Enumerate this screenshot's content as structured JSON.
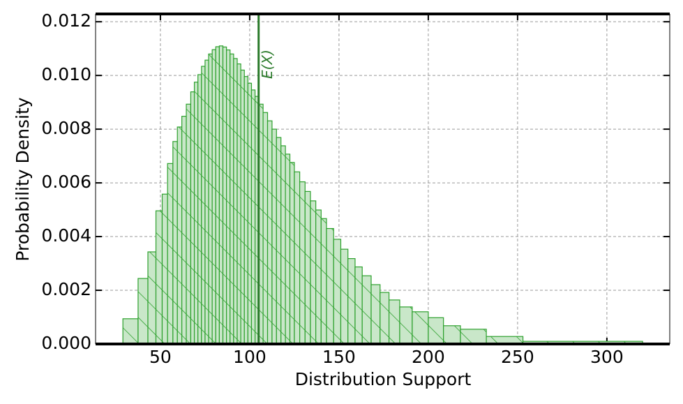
{
  "chart_data": {
    "type": "histogram",
    "xlabel": "Distribution Support",
    "ylabel": "Probability Density",
    "bins": [
      29,
      37.5,
      43,
      47.5,
      51,
      54,
      57,
      59.5,
      62,
      64.5,
      67,
      69,
      71,
      73,
      75,
      77,
      79,
      81,
      83,
      85,
      87,
      89,
      91,
      93,
      95,
      97,
      99,
      101,
      103,
      105,
      107.5,
      110,
      112.5,
      115,
      117.5,
      120,
      122.5,
      125,
      128,
      131,
      134,
      137,
      140,
      143,
      147,
      151,
      155,
      159,
      163,
      168,
      173,
      178,
      184,
      191,
      200,
      208.5,
      218,
      232.5,
      253,
      320
    ],
    "values": [
      0.00094,
      0.00244,
      0.00343,
      0.00496,
      0.00558,
      0.00672,
      0.00754,
      0.00808,
      0.00848,
      0.00893,
      0.00939,
      0.00975,
      0.01003,
      0.01034,
      0.01057,
      0.0108,
      0.01096,
      0.01107,
      0.0111,
      0.01106,
      0.01095,
      0.0108,
      0.01063,
      0.01043,
      0.0102,
      0.00996,
      0.00971,
      0.00946,
      0.00922,
      0.00893,
      0.00862,
      0.00831,
      0.008,
      0.00769,
      0.00738,
      0.00707,
      0.00676,
      0.00641,
      0.00604,
      0.00568,
      0.00533,
      0.00499,
      0.00467,
      0.0043,
      0.0039,
      0.00353,
      0.00318,
      0.00287,
      0.00254,
      0.00221,
      0.00192,
      0.00164,
      0.00138,
      0.0012,
      0.00098,
      0.00068,
      0.00055,
      0.00028,
      0.0001
    ],
    "color": "#c9e7c9",
    "edgecolor": "#2ca02c",
    "hatch_color": "#2ca02c",
    "mean_line": {
      "x": 105,
      "label": "E(X)",
      "color": "#2a7a2a"
    },
    "xlim": [
      13.7,
      335.2
    ],
    "ylim": [
      0,
      0.01229
    ],
    "xticks": [
      50,
      100,
      150,
      200,
      250,
      300
    ],
    "yticks": [
      {
        "value": 0,
        "label": "0.000"
      },
      {
        "value": 0.002,
        "label": "0.002"
      },
      {
        "value": 0.004,
        "label": "0.004"
      },
      {
        "value": 0.006,
        "label": "0.006"
      },
      {
        "value": 0.008,
        "label": "0.008"
      },
      {
        "value": 0.01,
        "label": "0.010"
      },
      {
        "value": 0.012,
        "label": "0.012"
      }
    ],
    "grid": true
  }
}
